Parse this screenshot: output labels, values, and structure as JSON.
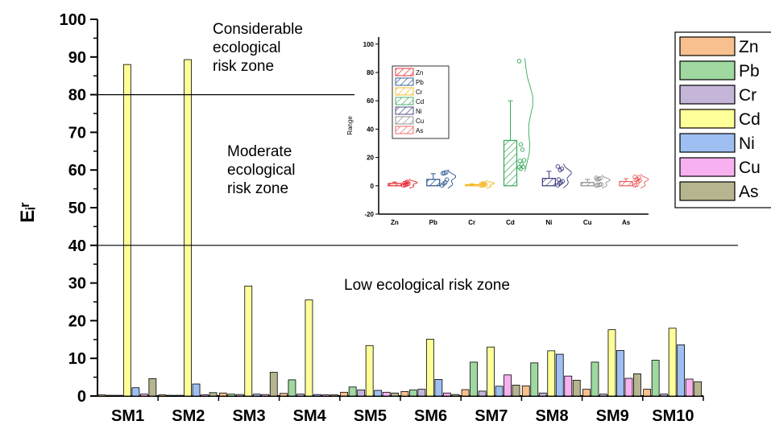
{
  "chart_data": [
    {
      "type": "bar",
      "ylabel": "Eᵢʳ",
      "ylim": [
        0,
        100
      ],
      "yticks": [
        0,
        10,
        20,
        30,
        40,
        50,
        60,
        70,
        80,
        90,
        100
      ],
      "categories": [
        "SM1",
        "SM2",
        "SM3",
        "SM4",
        "SM5",
        "SM6",
        "SM7",
        "SM8",
        "SM9",
        "SM10"
      ],
      "series": [
        {
          "name": "Zn",
          "color": "#f8c08e",
          "values": [
            0.3,
            0.3,
            0.8,
            0.7,
            1.0,
            1.2,
            1.7,
            2.7,
            1.8,
            1.8
          ]
        },
        {
          "name": "Pb",
          "color": "#9fd8a0",
          "values": [
            0.2,
            0.2,
            0.5,
            4.3,
            2.4,
            1.6,
            9.0,
            8.8,
            9.0,
            9.5
          ]
        },
        {
          "name": "Cr",
          "color": "#c4b5d9",
          "values": [
            0.2,
            0.2,
            0.4,
            0.5,
            1.6,
            1.8,
            1.3,
            0.8,
            0.5,
            0.5
          ]
        },
        {
          "name": "Cd",
          "color": "#ffff99",
          "values": [
            88,
            89.3,
            29.2,
            25.5,
            13.4,
            15.1,
            13.0,
            12.0,
            17.6,
            18.0
          ]
        },
        {
          "name": "Ni",
          "color": "#9fbff2",
          "values": [
            2.2,
            3.2,
            0.5,
            0.4,
            1.5,
            4.4,
            2.6,
            11.1,
            12.1,
            13.6
          ]
        },
        {
          "name": "Cu",
          "color": "#f8b1f0",
          "values": [
            0.5,
            0.3,
            0.4,
            0.3,
            1.0,
            0.8,
            5.6,
            5.3,
            4.7,
            4.5
          ]
        },
        {
          "name": "As",
          "color": "#b6b58f",
          "values": [
            4.6,
            0.9,
            6.3,
            0.3,
            0.8,
            0.4,
            2.9,
            4.2,
            5.9,
            3.8
          ]
        }
      ],
      "reference_lines": [
        40,
        80
      ],
      "annotations": [
        {
          "text_lines": [
            "Considerable",
            "ecological",
            "risk zone"
          ]
        },
        {
          "text_lines": [
            "Moderate",
            "ecological",
            "risk zone"
          ]
        },
        {
          "text_lines": [
            "Low ecological risk zone"
          ]
        }
      ],
      "legend": {
        "position": "top-right",
        "entries": [
          "Zn",
          "Pb",
          "Cr",
          "Cd",
          "Ni",
          "Cu",
          "As"
        ]
      }
    },
    {
      "type": "bar",
      "ylabel": "Range",
      "ylim": [
        -20,
        105
      ],
      "yticks": [
        -20,
        0,
        20,
        40,
        60,
        80,
        100
      ],
      "categories": [
        "Zn",
        "Pb",
        "Cr",
        "Cd",
        "Ni",
        "Cu",
        "As"
      ],
      "hatched_bars": true,
      "series": [
        {
          "name": "Zn",
          "color": "#e5212b",
          "mean": 1.6,
          "error": 1.0,
          "points": [
            0.3,
            0.6,
            1.0,
            1.5,
            1.8,
            2.2,
            2.7
          ]
        },
        {
          "name": "Pb",
          "color": "#26538f",
          "mean": 4.5,
          "error": 4.0,
          "points": [
            0.2,
            1.5,
            2.4,
            4.3,
            8.8,
            9.0,
            9.5
          ]
        },
        {
          "name": "Cr",
          "color": "#f3b51a",
          "mean": 0.8,
          "error": 0.6,
          "points": [
            0.2,
            0.4,
            0.5,
            0.8,
            1.3,
            1.6,
            1.8
          ]
        },
        {
          "name": "Cd",
          "color": "#37a85a",
          "mean": 32,
          "error": 28,
          "points": [
            88,
            29.2,
            25.5,
            18,
            17.6,
            15.1,
            13.4,
            13,
            12
          ]
        },
        {
          "name": "Ni",
          "color": "#3a3a80",
          "mean": 5.2,
          "error": 5.0,
          "points": [
            0.4,
            1.5,
            2.2,
            3.2,
            4.4,
            11.1,
            12.1,
            13.6
          ]
        },
        {
          "name": "Cu",
          "color": "#8c8c8c",
          "mean": 2.3,
          "error": 2.2,
          "points": [
            0.3,
            0.5,
            0.8,
            1.0,
            4.5,
            4.7,
            5.3,
            5.6
          ]
        },
        {
          "name": "As",
          "color": "#ef5b5b",
          "mean": 3.0,
          "error": 2.0,
          "points": [
            0.3,
            0.8,
            2.9,
            3.8,
            4.2,
            4.6,
            5.9,
            6.3
          ]
        }
      ],
      "legend": {
        "position": "top-left",
        "entries": [
          "Zn",
          "Pb",
          "Cr",
          "Cd",
          "Ni",
          "Cu",
          "As"
        ]
      }
    }
  ]
}
